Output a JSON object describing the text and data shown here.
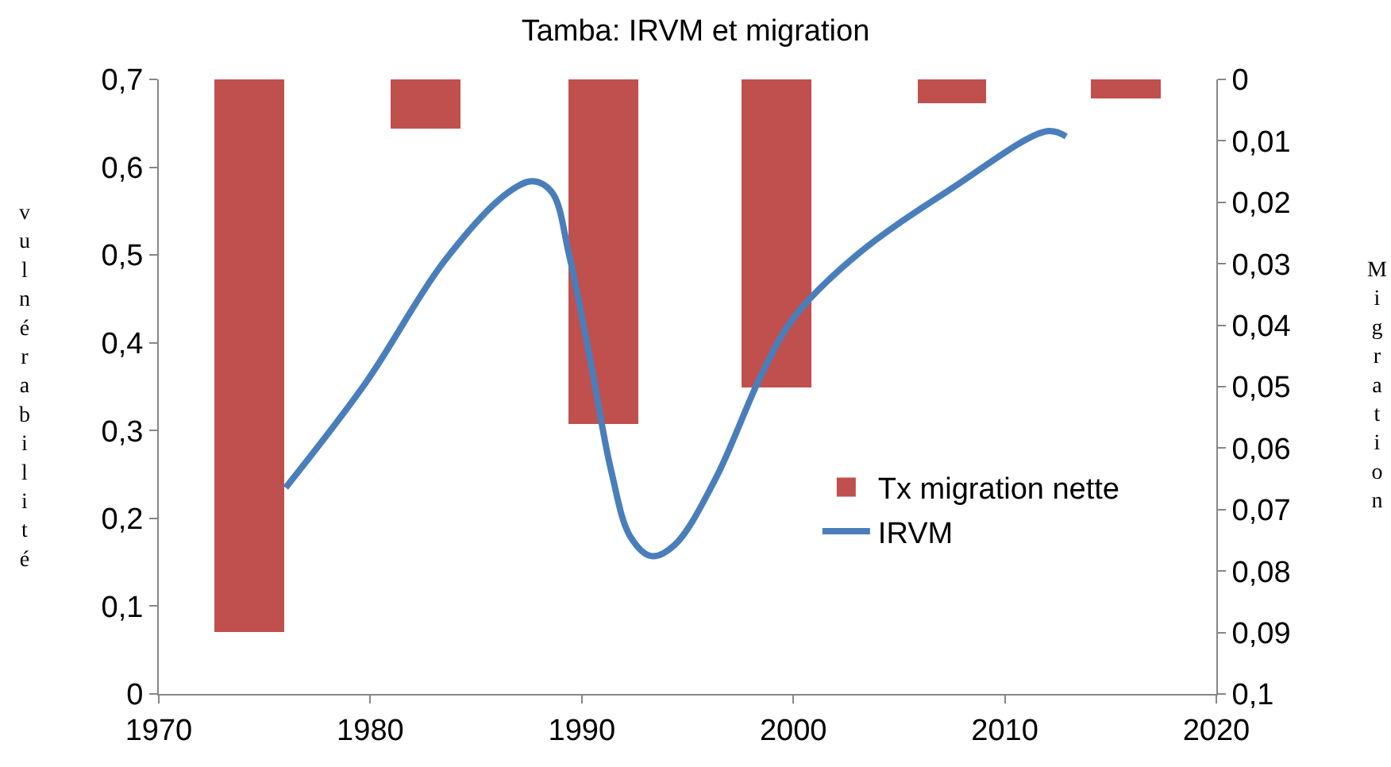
{
  "chart_data": {
    "type": "bar",
    "title": "Tamba: IRVM et migration",
    "ylabel": "vulnérabilité",
    "y2label": "Migration",
    "xlim": [
      1970,
      2020
    ],
    "xticks": [
      1970,
      1980,
      1990,
      2000,
      2010,
      2020
    ],
    "ylim": [
      0,
      0.7
    ],
    "yticks": [
      {
        "value": 0,
        "label": "0"
      },
      {
        "value": 0.1,
        "label": "0,1"
      },
      {
        "value": 0.2,
        "label": "0,2"
      },
      {
        "value": 0.3,
        "label": "0,3"
      },
      {
        "value": 0.4,
        "label": "0,4"
      },
      {
        "value": 0.5,
        "label": "0,5"
      },
      {
        "value": 0.6,
        "label": "0,6"
      },
      {
        "value": 0.7,
        "label": "0,7"
      }
    ],
    "y2lim": [
      0.1,
      0
    ],
    "y2ticks": [
      {
        "value": 0,
        "label": "0"
      },
      {
        "value": 0.01,
        "label": "0,01"
      },
      {
        "value": 0.02,
        "label": "0,02"
      },
      {
        "value": 0.03,
        "label": "0,03"
      },
      {
        "value": 0.04,
        "label": "0,04"
      },
      {
        "value": 0.05,
        "label": "0,05"
      },
      {
        "value": 0.06,
        "label": "0,06"
      },
      {
        "value": 0.07,
        "label": "0,07"
      },
      {
        "value": 0.08,
        "label": "0,08"
      },
      {
        "value": 0.09,
        "label": "0,09"
      },
      {
        "value": 0.1,
        "label": "0,1"
      }
    ],
    "legend": "bottom right",
    "marker": "none",
    "line_style": "solid",
    "series": [
      {
        "name": "Tx migration nette",
        "axis": "y2",
        "color": "#c0504d",
        "x": [
          1974.3,
          1982.6,
          1991.0,
          1999.2,
          2007.5,
          2015.7
        ],
        "values": [
          0.09,
          0.008,
          0.056,
          0.05,
          0.004,
          0.003
        ]
      },
      {
        "name": "IRVM",
        "type": "line",
        "axis": "y",
        "color": "#4a7ebb",
        "x": [
          1976,
          1979.8,
          1983.5,
          1986.5,
          1987.7,
          1988.6,
          1989.4,
          1990.4,
          1991.4,
          1992.3,
          1993.3,
          1994.4,
          1996.3,
          1998.5,
          2000,
          2003,
          2007.5,
          2012,
          2012.9
        ],
        "values": [
          0.235,
          0.355,
          0.493,
          0.571,
          0.584,
          0.571,
          0.5,
          0.38,
          0.253,
          0.179,
          0.157,
          0.17,
          0.244,
          0.364,
          0.428,
          0.5,
          0.576,
          0.641,
          0.635
        ]
      }
    ]
  }
}
